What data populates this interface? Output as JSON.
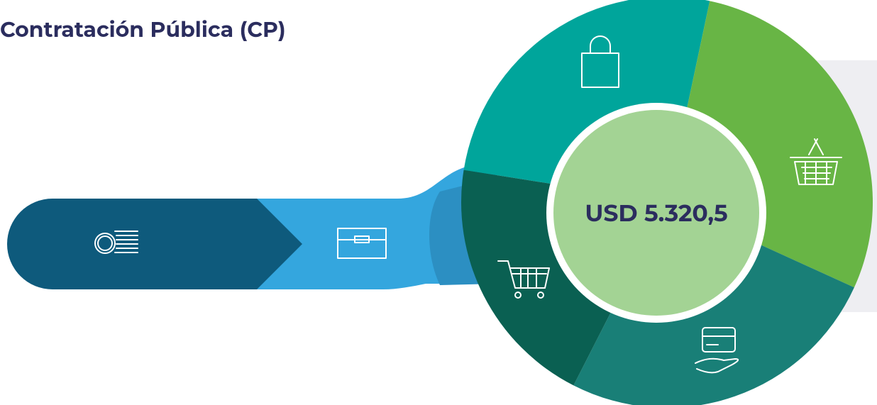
{
  "title": "Contratación Pública (CP)",
  "center_label": "USD 5.320,5"
}
